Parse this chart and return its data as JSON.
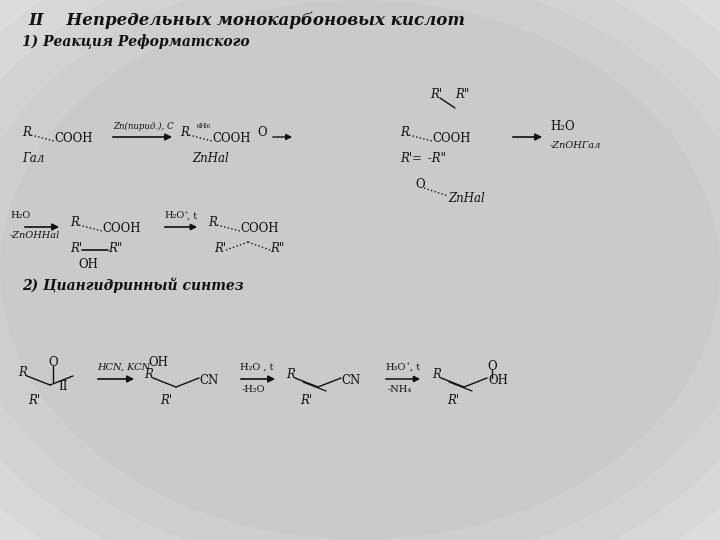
{
  "title": "II    Непредельных монокарбоновых кислот",
  "sec1": "1) Реакция Реформатского",
  "sec2": "2) Циангидринный синтез",
  "bg": "#ffffff"
}
